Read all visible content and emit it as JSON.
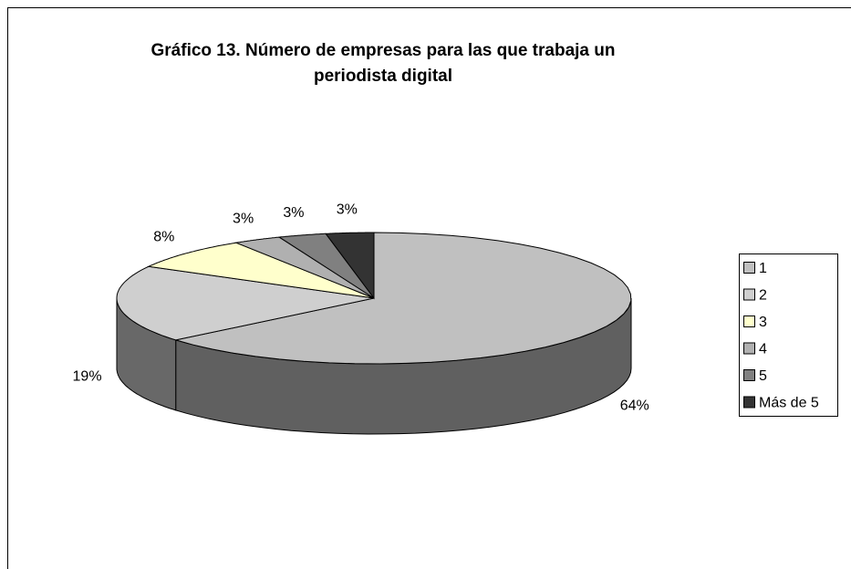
{
  "chart_data": {
    "type": "pie",
    "title": "Gráfico 13. Número de empresas para las que trabaja un periodista digital",
    "categories": [
      "1",
      "2",
      "3",
      "4",
      "5",
      "Más de 5"
    ],
    "values": [
      64,
      19,
      8,
      3,
      3,
      3
    ],
    "value_labels": [
      "64%",
      "19%",
      "8%",
      "3%",
      "3%",
      "3%"
    ],
    "colors": [
      "#c0c0c0",
      "#cfcfcf",
      "#ffffcc",
      "#b0b0b0",
      "#808080",
      "#333333"
    ],
    "legend": "right"
  }
}
